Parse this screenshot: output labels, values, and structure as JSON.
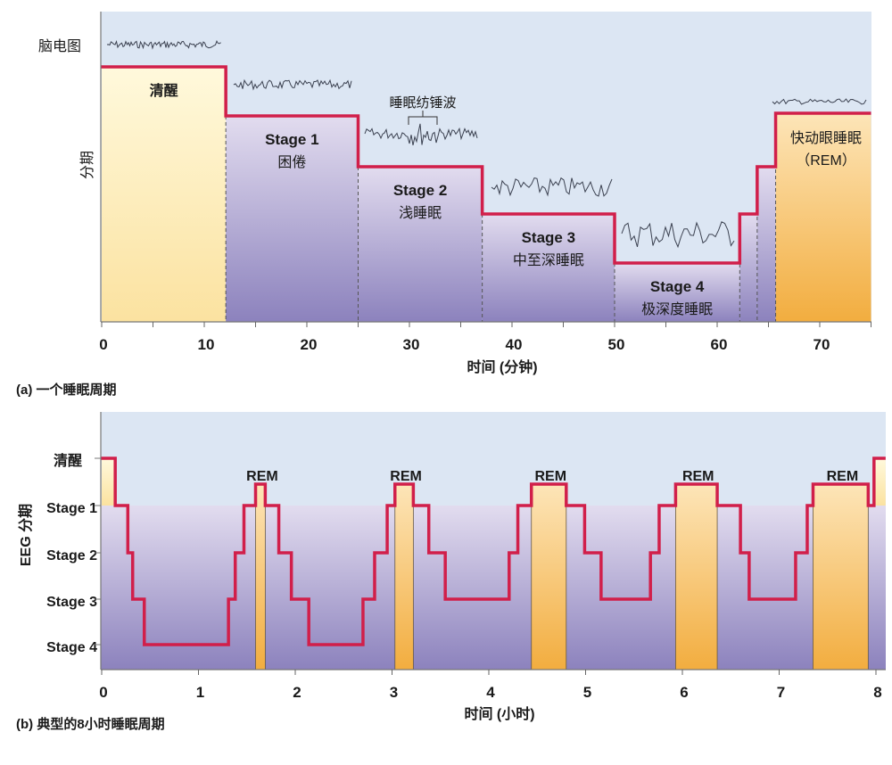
{
  "chart_data": [
    {
      "type": "line",
      "subtype": "step",
      "caption": "(a) 一个睡眠周期",
      "xlabel": "时间 (分钟)",
      "ylabel": "分期",
      "eeg_label": "脑电图",
      "spindle_label": "睡眠纺锤波",
      "xlim": [
        0,
        75
      ],
      "xticks": [
        0,
        10,
        20,
        30,
        40,
        50,
        60,
        70
      ],
      "segments": [
        {
          "start": 0,
          "end": 12.1,
          "stage": "wake",
          "label": [
            "清醒"
          ]
        },
        {
          "start": 12.1,
          "end": 25.0,
          "stage": "s1",
          "label": [
            "Stage 1",
            "困倦"
          ]
        },
        {
          "start": 25.0,
          "end": 37.1,
          "stage": "s2",
          "label": [
            "Stage 2",
            "浅睡眠"
          ]
        },
        {
          "start": 37.1,
          "end": 50.0,
          "stage": "s3",
          "label": [
            "Stage 3",
            "中至深睡眠"
          ]
        },
        {
          "start": 50.0,
          "end": 62.2,
          "stage": "s4",
          "label": [
            "Stage 4",
            "极深度睡眠"
          ]
        },
        {
          "start": 62.2,
          "end": 63.9,
          "stage": "s3",
          "label": []
        },
        {
          "start": 63.9,
          "end": 65.7,
          "stage": "s2",
          "label": []
        },
        {
          "start": 65.7,
          "end": 75,
          "stage": "rem",
          "label": [
            "快动眼睡眠",
            "（REM）"
          ]
        }
      ],
      "grid": false
    },
    {
      "type": "line",
      "subtype": "step",
      "caption": "(b) 典型的8小时睡眠周期",
      "xlabel": "时间 (小时)",
      "ylabel": "EEG 分期",
      "xlim": [
        0,
        8.1
      ],
      "xticks": [
        0,
        1,
        2,
        3,
        4,
        5,
        6,
        7,
        8
      ],
      "ytick_labels": [
        "清醒",
        "Stage 1",
        "Stage 2",
        "Stage 3",
        "Stage 4"
      ],
      "rem_label": "REM",
      "segments": [
        [
          0,
          0.14,
          "wake"
        ],
        [
          0.14,
          0.27,
          "s1"
        ],
        [
          0.27,
          0.32,
          "s2"
        ],
        [
          0.32,
          0.44,
          "s3"
        ],
        [
          0.44,
          1.31,
          "s4"
        ],
        [
          1.31,
          1.38,
          "s3"
        ],
        [
          1.38,
          1.47,
          "s2"
        ],
        [
          1.47,
          1.59,
          "s1"
        ],
        [
          1.59,
          1.69,
          "rem"
        ],
        [
          1.69,
          1.83,
          "s1"
        ],
        [
          1.83,
          1.96,
          "s2"
        ],
        [
          1.96,
          2.14,
          "s3"
        ],
        [
          2.14,
          2.7,
          "s4"
        ],
        [
          2.7,
          2.82,
          "s3"
        ],
        [
          2.82,
          2.95,
          "s2"
        ],
        [
          2.95,
          3.03,
          "s1"
        ],
        [
          3.03,
          3.22,
          "rem"
        ],
        [
          3.22,
          3.38,
          "s1"
        ],
        [
          3.38,
          3.55,
          "s2"
        ],
        [
          3.55,
          4.21,
          "s3"
        ],
        [
          4.21,
          4.3,
          "s2"
        ],
        [
          4.3,
          4.44,
          "s1"
        ],
        [
          4.44,
          4.8,
          "rem"
        ],
        [
          4.8,
          4.99,
          "s1"
        ],
        [
          4.99,
          5.16,
          "s2"
        ],
        [
          5.16,
          5.67,
          "s3"
        ],
        [
          5.67,
          5.76,
          "s2"
        ],
        [
          5.76,
          5.93,
          "s1"
        ],
        [
          5.93,
          6.36,
          "rem"
        ],
        [
          6.36,
          6.6,
          "s1"
        ],
        [
          6.6,
          6.69,
          "s2"
        ],
        [
          6.69,
          7.17,
          "s3"
        ],
        [
          7.17,
          7.29,
          "s2"
        ],
        [
          7.29,
          7.35,
          "s1"
        ],
        [
          7.35,
          7.92,
          "rem"
        ],
        [
          7.92,
          7.98,
          "s1"
        ],
        [
          7.98,
          8.1,
          "wake"
        ]
      ],
      "grid": false
    }
  ],
  "colors": {
    "background": "#dce6f3",
    "step_line": "#d11f4a",
    "wake_fill": "#fdf0c4",
    "rem_fill": "#f4b24a",
    "stage_fill_top": "#ddd8ec",
    "stage_fill_bottom": "#8a80bb"
  }
}
